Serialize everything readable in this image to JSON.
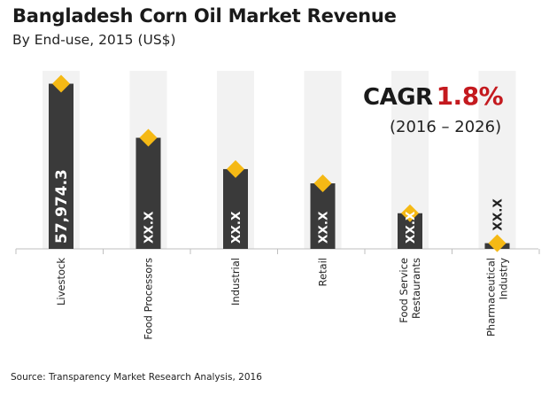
{
  "chart_data": {
    "type": "bar",
    "title": "Bangladesh Corn Oil Market Revenue",
    "subtitle": "By End-use, 2015 (US$)",
    "categories": [
      [
        "Livestock"
      ],
      [
        "Food Processors"
      ],
      [
        "Industrial"
      ],
      [
        "Retail"
      ],
      [
        "Food Service",
        "Restaurants"
      ],
      [
        "Pharmaceutical",
        "Industry"
      ]
    ],
    "values": [
      57974.3,
      39000,
      28000,
      23000,
      12500,
      2000
    ],
    "data_labels": [
      "57,974.3",
      "XX.X",
      "XX.X",
      "XX.X",
      "XX.X",
      "XX.X"
    ],
    "ylim": [
      0,
      60000
    ],
    "xlabel": "",
    "ylabel": "",
    "grid": false,
    "annotation": {
      "label": "CAGR",
      "value": "1.8%",
      "period": "(2016 – 2026)"
    },
    "source": "Source: Transparency Market Research Analysis, 2016"
  },
  "colors": {
    "bar": "#3a3a3a",
    "column_bg": "#f2f2f2",
    "marker": "#f5b915",
    "axis": "#bfbfbf",
    "cagr_value": "#c41a1f"
  }
}
